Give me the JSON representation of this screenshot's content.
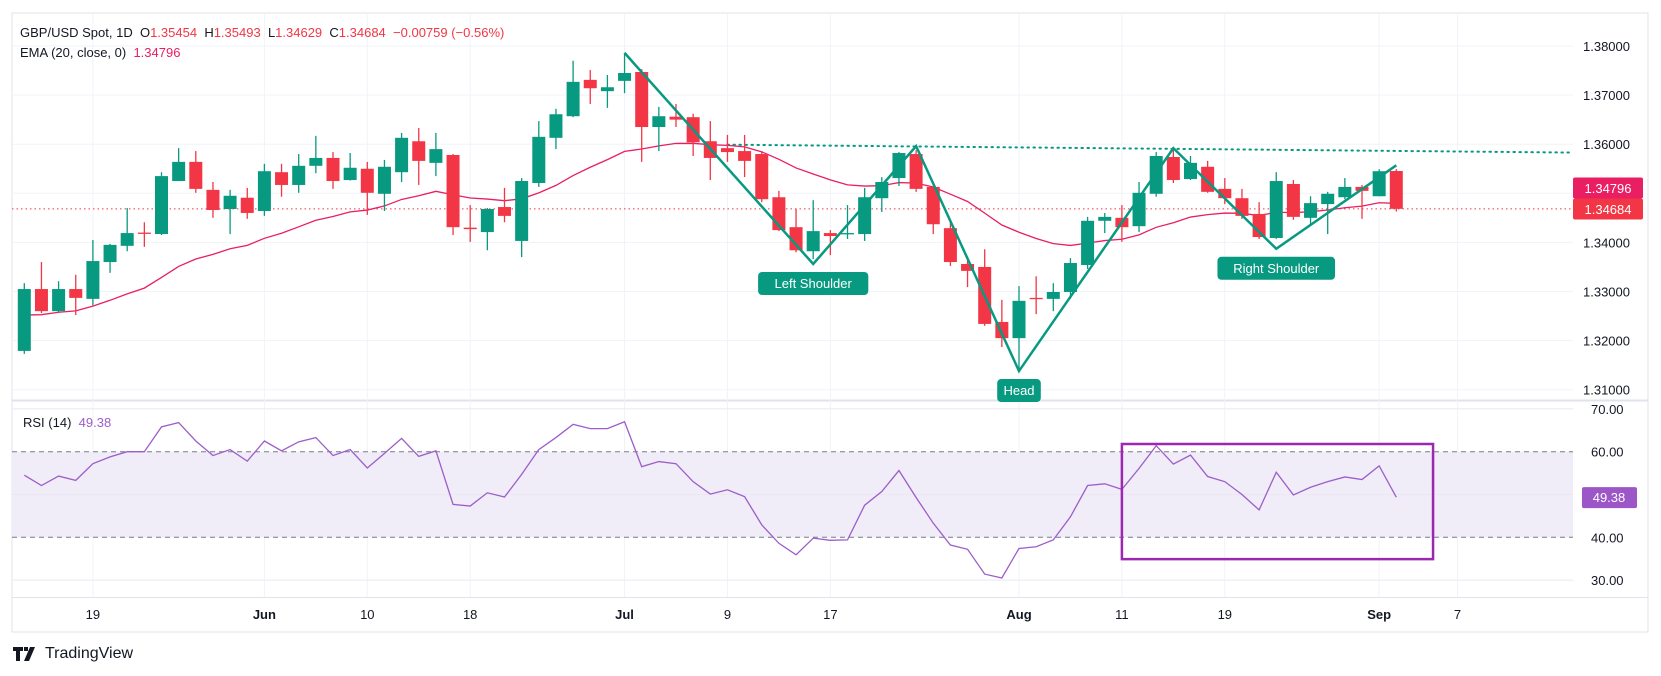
{
  "header": {
    "symbol": "GBP/USD Spot, 1D",
    "o_label": "O",
    "o": "1.35454",
    "h_label": "H",
    "h": "1.35493",
    "l_label": "L",
    "l": "1.34629",
    "c_label": "C",
    "c": "1.34684",
    "change": "−0.00759 (−0.56%)",
    "ema_label": "EMA (20, close, 0)",
    "ema_value": "1.34796"
  },
  "rsi_header": {
    "label": "RSI (14)",
    "value": "49.38"
  },
  "branding": {
    "logo_text": "TradingView"
  },
  "colors": {
    "up": "#089981",
    "down": "#f23645",
    "ema": "#e91e63",
    "rsi": "#9c5ec8",
    "pattern": "#089981",
    "rsi_box": "#9c27b0",
    "rsi_band": "#f0ecf8"
  },
  "chart_data": [
    {
      "type": "candlestick",
      "title": "GBP/USD Spot, 1D",
      "ylim": [
        1.305,
        1.387
      ],
      "y_ticks": [
        "1.38000",
        "1.37000",
        "1.36000",
        "1.34000",
        "1.33000",
        "1.32000",
        "1.31000"
      ],
      "y_tick_values": [
        1.38,
        1.37,
        1.36,
        1.34,
        1.33,
        1.32,
        1.31
      ],
      "x_ticks": [
        {
          "label": "19",
          "date": "May 19"
        },
        {
          "label": "Jun",
          "date": "Jun 2"
        },
        {
          "label": "10",
          "date": "Jun 10"
        },
        {
          "label": "18",
          "date": "Jun 18"
        },
        {
          "label": "Jul",
          "date": "Jul 1"
        },
        {
          "label": "9",
          "date": "Jul 9"
        },
        {
          "label": "17",
          "date": "Jul 17"
        },
        {
          "label": "Aug",
          "date": "Aug 1"
        },
        {
          "label": "11",
          "date": "Aug 11"
        },
        {
          "label": "19",
          "date": "Aug 19"
        },
        {
          "label": "Sep",
          "date": "Sep 1"
        },
        {
          "label": "7",
          "date": "Sep 7"
        }
      ],
      "grid": true,
      "columns": [
        "date",
        "open",
        "high",
        "low",
        "close"
      ],
      "candles": [
        [
          "May 13",
          1.3179,
          1.3317,
          1.3173,
          1.3305
        ],
        [
          "May 14",
          1.3305,
          1.336,
          1.3256,
          1.326
        ],
        [
          "May 15",
          1.326,
          1.3321,
          1.3258,
          1.3305
        ],
        [
          "May 16",
          1.3305,
          1.3334,
          1.3252,
          1.3287
        ],
        [
          "May 19",
          1.3285,
          1.3405,
          1.3272,
          1.3362
        ],
        [
          "May 20",
          1.336,
          1.3397,
          1.3338,
          1.3395
        ],
        [
          "May 21",
          1.3393,
          1.347,
          1.3382,
          1.3419
        ],
        [
          "May 22",
          1.342,
          1.3441,
          1.3391,
          1.3419
        ],
        [
          "May 23",
          1.3417,
          1.3543,
          1.3415,
          1.3535
        ],
        [
          "May 26",
          1.3525,
          1.3592,
          1.3525,
          1.3564
        ],
        [
          "May 27",
          1.3564,
          1.3586,
          1.3501,
          1.3509
        ],
        [
          "May 28",
          1.3507,
          1.3523,
          1.345,
          1.3466
        ],
        [
          "May 29",
          1.3468,
          1.3507,
          1.3417,
          1.3495
        ],
        [
          "May 30",
          1.3491,
          1.3511,
          1.3448,
          1.346
        ],
        [
          "Jun 2",
          1.3464,
          1.356,
          1.3454,
          1.3545
        ],
        [
          "Jun 3",
          1.3543,
          1.356,
          1.3493,
          1.3517
        ],
        [
          "Jun 4",
          1.3517,
          1.358,
          1.3501,
          1.3556
        ],
        [
          "Jun 5",
          1.3556,
          1.3617,
          1.3541,
          1.3572
        ],
        [
          "Jun 6",
          1.3572,
          1.3584,
          1.3509,
          1.3525
        ],
        [
          "Jun 9",
          1.3527,
          1.3582,
          1.3526,
          1.3552
        ],
        [
          "Jun 10",
          1.355,
          1.3564,
          1.3456,
          1.3501
        ],
        [
          "Jun 11",
          1.3499,
          1.3568,
          1.3464,
          1.3554
        ],
        [
          "Jun 12",
          1.3543,
          1.3623,
          1.3523,
          1.3613
        ],
        [
          "Jun 13",
          1.3606,
          1.3633,
          1.3517,
          1.3566
        ],
        [
          "Jun 16",
          1.3562,
          1.3623,
          1.3535,
          1.359
        ],
        [
          "Jun 17",
          1.3578,
          1.358,
          1.3415,
          1.3431
        ],
        [
          "Jun 18",
          1.343,
          1.3476,
          1.3401,
          1.3427
        ],
        [
          "Jun 19",
          1.3421,
          1.347,
          1.3384,
          1.3468
        ],
        [
          "Jun 20",
          1.3472,
          1.3511,
          1.3441,
          1.3454
        ],
        [
          "Jun 23",
          1.3403,
          1.3531,
          1.337,
          1.3525
        ],
        [
          "Jun 24",
          1.3521,
          1.3647,
          1.3513,
          1.3615
        ],
        [
          "Jun 25",
          1.3613,
          1.3672,
          1.359,
          1.3661
        ],
        [
          "Jun 26",
          1.3657,
          1.377,
          1.3655,
          1.3727
        ],
        [
          "Jun 27",
          1.3731,
          1.3751,
          1.3682,
          1.3714
        ],
        [
          "Jun 30",
          1.3708,
          1.3741,
          1.3674,
          1.3716
        ],
        [
          "Jul 1",
          1.3729,
          1.3786,
          1.3704,
          1.3745
        ],
        [
          "Jul 2",
          1.3747,
          1.3753,
          1.3564,
          1.3635
        ],
        [
          "Jul 3",
          1.3635,
          1.3676,
          1.3586,
          1.3657
        ],
        [
          "Jul 4",
          1.3656,
          1.3682,
          1.3635,
          1.365
        ],
        [
          "Jul 7",
          1.3655,
          1.3662,
          1.3576,
          1.3604
        ],
        [
          "Jul 8",
          1.3606,
          1.3647,
          1.3527,
          1.3572
        ],
        [
          "Jul 9",
          1.3592,
          1.3619,
          1.3564,
          1.3584
        ],
        [
          "Jul 10",
          1.3586,
          1.3619,
          1.3533,
          1.3566
        ],
        [
          "Jul 11",
          1.358,
          1.3586,
          1.3482,
          1.3488
        ],
        [
          "Jul 14",
          1.3492,
          1.3505,
          1.3423,
          1.3425
        ],
        [
          "Jul 15",
          1.3431,
          1.3468,
          1.338,
          1.3384
        ],
        [
          "Jul 16",
          1.3382,
          1.3486,
          1.3366,
          1.3423
        ],
        [
          "Jul 17",
          1.3419,
          1.3425,
          1.3374,
          1.3413
        ],
        [
          "Jul 18",
          1.3417,
          1.3476,
          1.3407,
          1.3419
        ],
        [
          "Jul 21",
          1.3417,
          1.3511,
          1.3403,
          1.3492
        ],
        [
          "Jul 22",
          1.349,
          1.3533,
          1.3462,
          1.3523
        ],
        [
          "Jul 23",
          1.3531,
          1.3584,
          1.3515,
          1.3582
        ],
        [
          "Jul 24",
          1.358,
          1.3588,
          1.3503,
          1.3509
        ],
        [
          "Jul 25",
          1.3513,
          1.3515,
          1.3417,
          1.3437
        ],
        [
          "Jul 28",
          1.3429,
          1.3441,
          1.3352,
          1.336
        ],
        [
          "Jul 29",
          1.3356,
          1.3364,
          1.3309,
          1.3342
        ],
        [
          "Jul 30",
          1.335,
          1.3386,
          1.323,
          1.3234
        ],
        [
          "Jul 31",
          1.3238,
          1.3283,
          1.3187,
          1.3205
        ],
        [
          "Aug 1",
          1.3205,
          1.3311,
          1.3138,
          1.3281
        ],
        [
          "Aug 4",
          1.3287,
          1.3331,
          1.3254,
          1.3285
        ],
        [
          "Aug 5",
          1.3285,
          1.3317,
          1.326,
          1.3299
        ],
        [
          "Aug 6",
          1.3299,
          1.3368,
          1.3285,
          1.3358
        ],
        [
          "Aug 7",
          1.3354,
          1.3452,
          1.3346,
          1.3444
        ],
        [
          "Aug 8",
          1.3444,
          1.346,
          1.3419,
          1.3452
        ],
        [
          "Aug 11",
          1.345,
          1.3476,
          1.3401,
          1.3431
        ],
        [
          "Aug 12",
          1.3433,
          1.3523,
          1.3421,
          1.3501
        ],
        [
          "Aug 13",
          1.3499,
          1.3584,
          1.3493,
          1.3576
        ],
        [
          "Aug 14",
          1.3574,
          1.3592,
          1.3521,
          1.3527
        ],
        [
          "Aug 15",
          1.3529,
          1.3576,
          1.3527,
          1.3562
        ],
        [
          "Aug 18",
          1.3554,
          1.3566,
          1.3501,
          1.3503
        ],
        [
          "Aug 19",
          1.3509,
          1.3531,
          1.3478,
          1.349
        ],
        [
          "Aug 20",
          1.349,
          1.3509,
          1.3448,
          1.3454
        ],
        [
          "Aug 21",
          1.3458,
          1.3482,
          1.3407,
          1.3411
        ],
        [
          "Aug 22",
          1.3409,
          1.3543,
          1.3407,
          1.3525
        ],
        [
          "Aug 25",
          1.3519,
          1.3527,
          1.3446,
          1.3452
        ],
        [
          "Aug 26",
          1.345,
          1.3494,
          1.3437,
          1.348
        ],
        [
          "Aug 27",
          1.3478,
          1.3503,
          1.3417,
          1.3499
        ],
        [
          "Aug 28",
          1.3492,
          1.3531,
          1.3488,
          1.3513
        ],
        [
          "Aug 29",
          1.3513,
          1.3517,
          1.3448,
          1.3505
        ],
        [
          "Sep 1",
          1.3494,
          1.3549,
          1.3494,
          1.3545
        ],
        [
          "Sep 2",
          1.35454,
          1.35493,
          1.34629,
          1.34684
        ]
      ],
      "ema": {
        "name": "EMA (20, close, 0)",
        "period": 20,
        "last": 1.34796
      },
      "last_price": 1.34684,
      "price_labels": [
        "1.34796",
        "1.34684"
      ],
      "neckline": {
        "start": [
          "Jul 9",
          1.3599
        ],
        "end_price": 1.3583,
        "extend_right": true,
        "style": "dotted"
      },
      "pattern": [
        [
          "Jul 1",
          1.3786
        ],
        [
          "Jul 16",
          1.3356
        ],
        [
          "Jul 24",
          1.3596
        ],
        [
          "Aug 1",
          1.3138
        ],
        [
          "Aug 14",
          1.3592
        ],
        [
          "Aug 22",
          1.3387
        ],
        [
          "Sep 2",
          1.3557
        ]
      ],
      "annotations": [
        {
          "text": "Left Shoulder",
          "date": "Jul 16",
          "price": 1.3356
        },
        {
          "text": "Head",
          "date": "Aug 1",
          "price": 1.3138
        },
        {
          "text": "Right Shoulder",
          "date": "Aug 22",
          "price": 1.3387
        }
      ]
    },
    {
      "type": "line",
      "title": "RSI (14)",
      "ylim": [
        25,
        72
      ],
      "y_ticks": [
        "70.00",
        "60.00",
        "40.00",
        "30.00"
      ],
      "y_tick_values": [
        70,
        60,
        40,
        30
      ],
      "band": [
        40,
        60
      ],
      "last_label": "49.38",
      "values": [
        54.5,
        52.1,
        54.3,
        53.3,
        57.2,
        58.8,
        60.0,
        60.0,
        65.8,
        66.8,
        62.5,
        59.1,
        60.5,
        57.8,
        62.5,
        60.2,
        62.3,
        63.3,
        59.1,
        60.5,
        56.2,
        59.6,
        63.1,
        58.9,
        60.2,
        47.7,
        47.3,
        50.4,
        49.4,
        54.7,
        60.5,
        63.3,
        66.4,
        65.4,
        65.4,
        67.0,
        56.5,
        57.7,
        57.2,
        53.0,
        50.1,
        51.1,
        49.5,
        42.9,
        38.6,
        35.9,
        39.8,
        39.3,
        39.4,
        47.5,
        50.7,
        55.6,
        49.3,
        43.3,
        38.2,
        37.2,
        31.4,
        30.5,
        37.4,
        37.8,
        39.4,
        44.8,
        52.1,
        52.5,
        51.2,
        56.1,
        61.4,
        57.1,
        59.2,
        54.2,
        53.0,
        50.0,
        46.4,
        55.2,
        49.9,
        51.7,
        53.0,
        54.1,
        53.5,
        56.7,
        49.38
      ],
      "highlight_box": {
        "from": "Aug 11",
        "to": "Sep 5",
        "rsi_top": 61.8,
        "rsi_bottom": 34.9
      }
    }
  ]
}
